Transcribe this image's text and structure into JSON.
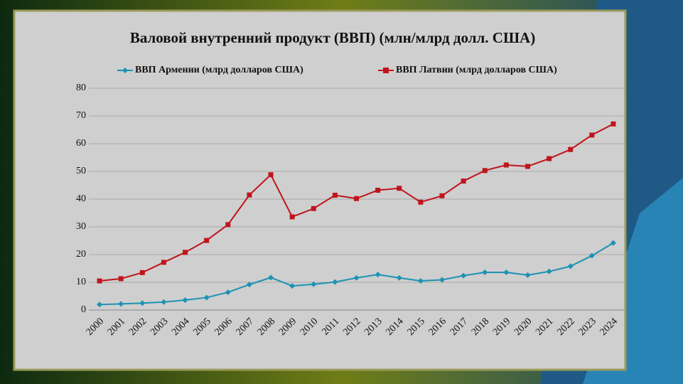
{
  "chart_data": {
    "type": "line",
    "title": "Валовой внутренний продукт (ВВП) (млн/млрд долл. США)",
    "categories": [
      "2000",
      "2001",
      "2002",
      "2003",
      "2004",
      "2005",
      "2006",
      "2007",
      "2008",
      "2009",
      "2010",
      "2011",
      "2012",
      "2013",
      "2014",
      "2015",
      "2016",
      "2017",
      "2018",
      "2019",
      "2020",
      "2021",
      "2022",
      "2023",
      "2024"
    ],
    "series": [
      {
        "name": "ВВП Армении (млрд долларов США)",
        "color": "#1c93b3",
        "marker": "diamond",
        "values": [
          2.0,
          2.2,
          2.5,
          2.9,
          3.6,
          4.5,
          6.4,
          9.2,
          11.7,
          8.7,
          9.3,
          10.1,
          11.6,
          12.8,
          11.6,
          10.5,
          10.9,
          12.4,
          13.6,
          13.6,
          12.6,
          13.9,
          15.8,
          19.6,
          24.2
        ]
      },
      {
        "name": "ВВП Латвии (млрд долларов США)",
        "color": "#c0141c",
        "marker": "square",
        "values": [
          10.5,
          11.3,
          13.5,
          17.2,
          20.8,
          25.1,
          30.8,
          41.5,
          48.8,
          33.6,
          36.6,
          41.4,
          40.2,
          43.2,
          43.9,
          38.9,
          41.2,
          46.5,
          50.3,
          52.3,
          51.8,
          54.6,
          57.9,
          63.1,
          67.1
        ]
      }
    ],
    "ylim": [
      0,
      80
    ],
    "yticks": [
      0,
      10,
      20,
      30,
      40,
      50,
      60,
      70,
      80
    ],
    "grid": true,
    "legend": "top"
  }
}
